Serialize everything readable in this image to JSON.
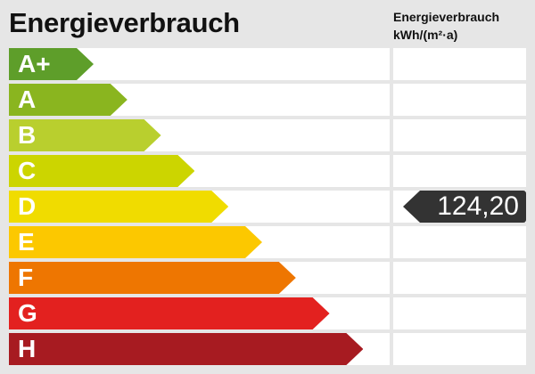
{
  "title": "Energieverbrauch",
  "column_header": {
    "line1": "Energieverbrauch",
    "line2": "kWh/(m²·a)"
  },
  "chart_data": {
    "type": "bar",
    "title": "Energieverbrauch",
    "unit": "kWh/(m²·a)",
    "categories": [
      "A+",
      "A",
      "B",
      "C",
      "D",
      "E",
      "F",
      "G",
      "H"
    ],
    "colors": [
      "#5e9e2a",
      "#8ab51f",
      "#b9cf2e",
      "#ccd500",
      "#f0dc00",
      "#fcc800",
      "#ee7601",
      "#e3211f",
      "#a71b21"
    ],
    "selected_class": "D",
    "value_label": "124,20",
    "value": 124.2
  }
}
